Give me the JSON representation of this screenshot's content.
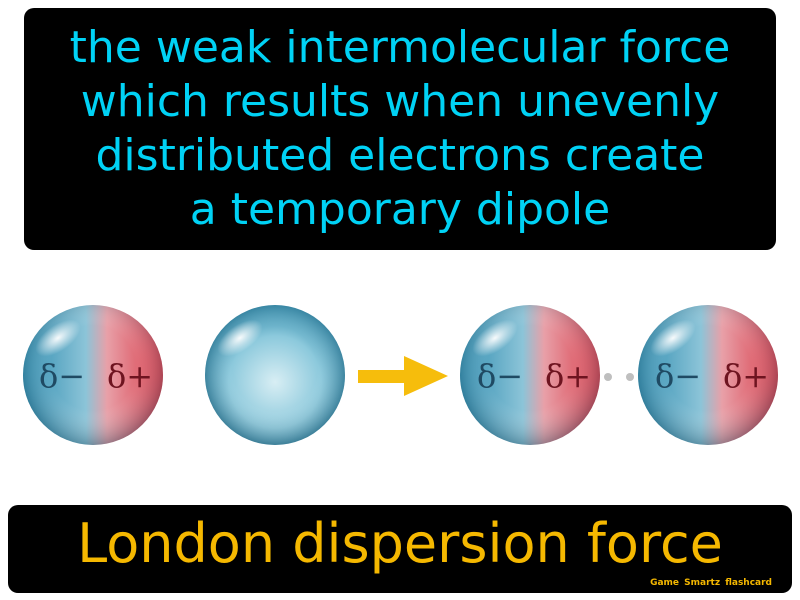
{
  "definition": {
    "lines": [
      "the weak intermolecular force",
      "which results when unevenly",
      "distributed electrons create",
      "a temporary dipole"
    ]
  },
  "illustration": {
    "labels": {
      "delta_minus": "δ−",
      "delta_plus": "δ+"
    }
  },
  "title": "London dispersion force",
  "credit": "Game Smartz flashcard",
  "colors": {
    "definition_text": "#00d2f5",
    "title_text": "#f5b800",
    "credit_text": "#f5b800",
    "sphere_blue": "#3a9cbb",
    "sphere_red": "#e0505a",
    "arrow": "#f6bd0c",
    "delta_minus_text": "#1f4a63",
    "delta_plus_text": "#6e1420"
  }
}
